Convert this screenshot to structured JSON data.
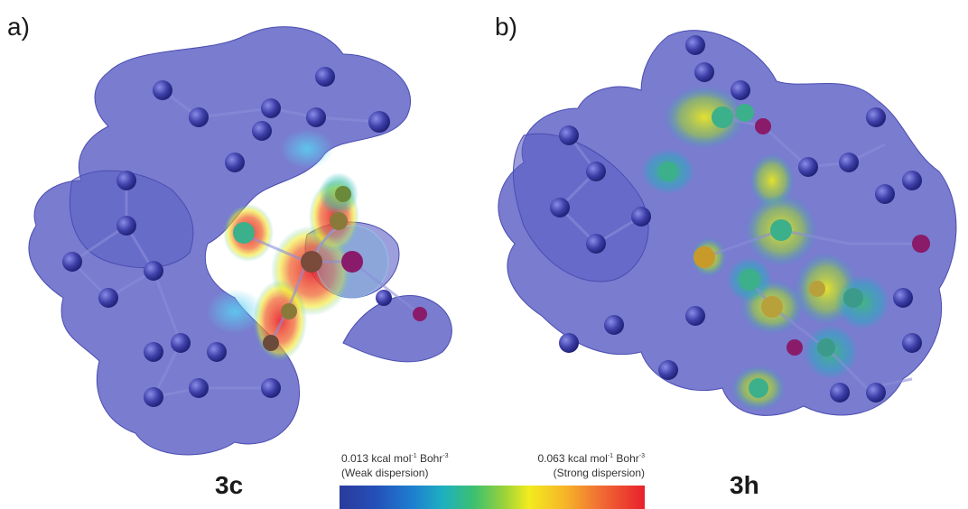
{
  "panels": {
    "a": {
      "letter": "a)",
      "compound": "3c"
    },
    "b": {
      "letter": "b)",
      "compound": "3h"
    }
  },
  "legend": {
    "min_value": "0.013 kcal mol",
    "min_unit_exp": "-1",
    "min_unit_tail": " Bohr",
    "min_unit_exp2": "-3",
    "min_caption": "(Weak dispersion)",
    "max_value": "0.063 kcal mol",
    "max_unit_exp": "-1",
    "max_unit_tail": " Bohr",
    "max_unit_exp2": "-3",
    "max_caption": "(Strong dispersion)"
  },
  "colors": {
    "surface": "#5b5fc4",
    "atom": "#3e3fa8",
    "weak": "#2a3a9c",
    "strong": "#e8202c"
  }
}
